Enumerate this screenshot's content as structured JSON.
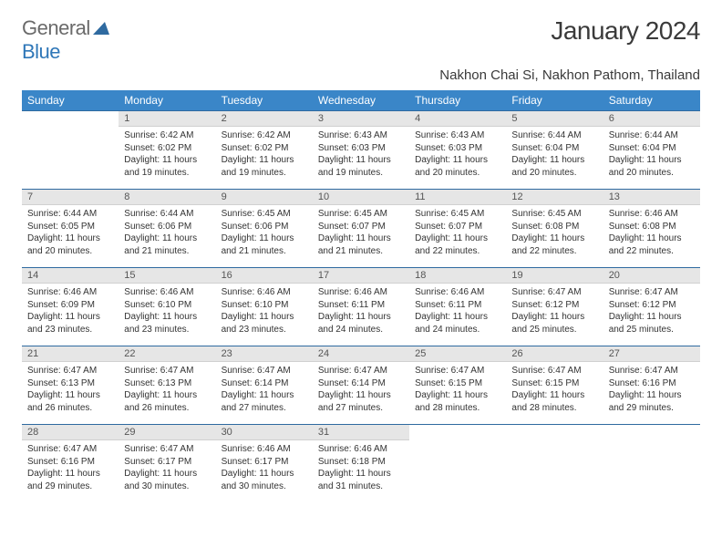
{
  "brand": {
    "part1": "General",
    "part2": "Blue"
  },
  "title": "January 2024",
  "location": "Nakhon Chai Si, Nakhon Pathom, Thailand",
  "colors": {
    "header_bg": "#3a86c8",
    "header_text": "#ffffff",
    "daynum_bg": "#e6e6e6",
    "rule": "#2f6aa0",
    "brand_gray": "#6a6a6a",
    "brand_blue": "#2f77b8"
  },
  "weekdays": [
    "Sunday",
    "Monday",
    "Tuesday",
    "Wednesday",
    "Thursday",
    "Friday",
    "Saturday"
  ],
  "weeks": [
    [
      {
        "n": "",
        "sr": "",
        "ss": "",
        "dl": ""
      },
      {
        "n": "1",
        "sr": "Sunrise: 6:42 AM",
        "ss": "Sunset: 6:02 PM",
        "dl": "Daylight: 11 hours and 19 minutes."
      },
      {
        "n": "2",
        "sr": "Sunrise: 6:42 AM",
        "ss": "Sunset: 6:02 PM",
        "dl": "Daylight: 11 hours and 19 minutes."
      },
      {
        "n": "3",
        "sr": "Sunrise: 6:43 AM",
        "ss": "Sunset: 6:03 PM",
        "dl": "Daylight: 11 hours and 19 minutes."
      },
      {
        "n": "4",
        "sr": "Sunrise: 6:43 AM",
        "ss": "Sunset: 6:03 PM",
        "dl": "Daylight: 11 hours and 20 minutes."
      },
      {
        "n": "5",
        "sr": "Sunrise: 6:44 AM",
        "ss": "Sunset: 6:04 PM",
        "dl": "Daylight: 11 hours and 20 minutes."
      },
      {
        "n": "6",
        "sr": "Sunrise: 6:44 AM",
        "ss": "Sunset: 6:04 PM",
        "dl": "Daylight: 11 hours and 20 minutes."
      }
    ],
    [
      {
        "n": "7",
        "sr": "Sunrise: 6:44 AM",
        "ss": "Sunset: 6:05 PM",
        "dl": "Daylight: 11 hours and 20 minutes."
      },
      {
        "n": "8",
        "sr": "Sunrise: 6:44 AM",
        "ss": "Sunset: 6:06 PM",
        "dl": "Daylight: 11 hours and 21 minutes."
      },
      {
        "n": "9",
        "sr": "Sunrise: 6:45 AM",
        "ss": "Sunset: 6:06 PM",
        "dl": "Daylight: 11 hours and 21 minutes."
      },
      {
        "n": "10",
        "sr": "Sunrise: 6:45 AM",
        "ss": "Sunset: 6:07 PM",
        "dl": "Daylight: 11 hours and 21 minutes."
      },
      {
        "n": "11",
        "sr": "Sunrise: 6:45 AM",
        "ss": "Sunset: 6:07 PM",
        "dl": "Daylight: 11 hours and 22 minutes."
      },
      {
        "n": "12",
        "sr": "Sunrise: 6:45 AM",
        "ss": "Sunset: 6:08 PM",
        "dl": "Daylight: 11 hours and 22 minutes."
      },
      {
        "n": "13",
        "sr": "Sunrise: 6:46 AM",
        "ss": "Sunset: 6:08 PM",
        "dl": "Daylight: 11 hours and 22 minutes."
      }
    ],
    [
      {
        "n": "14",
        "sr": "Sunrise: 6:46 AM",
        "ss": "Sunset: 6:09 PM",
        "dl": "Daylight: 11 hours and 23 minutes."
      },
      {
        "n": "15",
        "sr": "Sunrise: 6:46 AM",
        "ss": "Sunset: 6:10 PM",
        "dl": "Daylight: 11 hours and 23 minutes."
      },
      {
        "n": "16",
        "sr": "Sunrise: 6:46 AM",
        "ss": "Sunset: 6:10 PM",
        "dl": "Daylight: 11 hours and 23 minutes."
      },
      {
        "n": "17",
        "sr": "Sunrise: 6:46 AM",
        "ss": "Sunset: 6:11 PM",
        "dl": "Daylight: 11 hours and 24 minutes."
      },
      {
        "n": "18",
        "sr": "Sunrise: 6:46 AM",
        "ss": "Sunset: 6:11 PM",
        "dl": "Daylight: 11 hours and 24 minutes."
      },
      {
        "n": "19",
        "sr": "Sunrise: 6:47 AM",
        "ss": "Sunset: 6:12 PM",
        "dl": "Daylight: 11 hours and 25 minutes."
      },
      {
        "n": "20",
        "sr": "Sunrise: 6:47 AM",
        "ss": "Sunset: 6:12 PM",
        "dl": "Daylight: 11 hours and 25 minutes."
      }
    ],
    [
      {
        "n": "21",
        "sr": "Sunrise: 6:47 AM",
        "ss": "Sunset: 6:13 PM",
        "dl": "Daylight: 11 hours and 26 minutes."
      },
      {
        "n": "22",
        "sr": "Sunrise: 6:47 AM",
        "ss": "Sunset: 6:13 PM",
        "dl": "Daylight: 11 hours and 26 minutes."
      },
      {
        "n": "23",
        "sr": "Sunrise: 6:47 AM",
        "ss": "Sunset: 6:14 PM",
        "dl": "Daylight: 11 hours and 27 minutes."
      },
      {
        "n": "24",
        "sr": "Sunrise: 6:47 AM",
        "ss": "Sunset: 6:14 PM",
        "dl": "Daylight: 11 hours and 27 minutes."
      },
      {
        "n": "25",
        "sr": "Sunrise: 6:47 AM",
        "ss": "Sunset: 6:15 PM",
        "dl": "Daylight: 11 hours and 28 minutes."
      },
      {
        "n": "26",
        "sr": "Sunrise: 6:47 AM",
        "ss": "Sunset: 6:15 PM",
        "dl": "Daylight: 11 hours and 28 minutes."
      },
      {
        "n": "27",
        "sr": "Sunrise: 6:47 AM",
        "ss": "Sunset: 6:16 PM",
        "dl": "Daylight: 11 hours and 29 minutes."
      }
    ],
    [
      {
        "n": "28",
        "sr": "Sunrise: 6:47 AM",
        "ss": "Sunset: 6:16 PM",
        "dl": "Daylight: 11 hours and 29 minutes."
      },
      {
        "n": "29",
        "sr": "Sunrise: 6:47 AM",
        "ss": "Sunset: 6:17 PM",
        "dl": "Daylight: 11 hours and 30 minutes."
      },
      {
        "n": "30",
        "sr": "Sunrise: 6:46 AM",
        "ss": "Sunset: 6:17 PM",
        "dl": "Daylight: 11 hours and 30 minutes."
      },
      {
        "n": "31",
        "sr": "Sunrise: 6:46 AM",
        "ss": "Sunset: 6:18 PM",
        "dl": "Daylight: 11 hours and 31 minutes."
      },
      {
        "n": "",
        "sr": "",
        "ss": "",
        "dl": ""
      },
      {
        "n": "",
        "sr": "",
        "ss": "",
        "dl": ""
      },
      {
        "n": "",
        "sr": "",
        "ss": "",
        "dl": ""
      }
    ]
  ]
}
